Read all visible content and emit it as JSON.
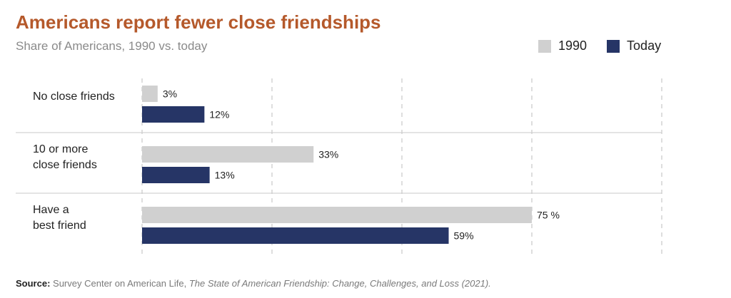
{
  "title": "Americans report fewer close friendships",
  "subtitle": "Share of Americans, 1990 vs. today",
  "legend": [
    {
      "name": "1990",
      "color": "#d0d0d0"
    },
    {
      "name": "Today",
      "color": "#263566"
    }
  ],
  "source": {
    "label": "Source:",
    "text": "Survey Center on American Life,",
    "title": "The State of American Friendship: Change, Challenges, and Loss (2021)."
  },
  "chart_data": {
    "type": "bar",
    "orientation": "horizontal",
    "categories": [
      [
        "No close friends"
      ],
      [
        "10 or more",
        "close friends"
      ],
      [
        "Have a",
        "best friend"
      ]
    ],
    "series": [
      {
        "name": "1990",
        "color": "#d0d0d0",
        "values": [
          3,
          33,
          75
        ],
        "labels": [
          "3%",
          "33%",
          "75 %"
        ]
      },
      {
        "name": "Today",
        "color": "#263566",
        "values": [
          12,
          13,
          59
        ],
        "labels": [
          "12%",
          "13%",
          "59%"
        ]
      }
    ],
    "xlim": [
      0,
      100
    ],
    "grid": "vertical-dashed",
    "legend_position": "top-right"
  }
}
